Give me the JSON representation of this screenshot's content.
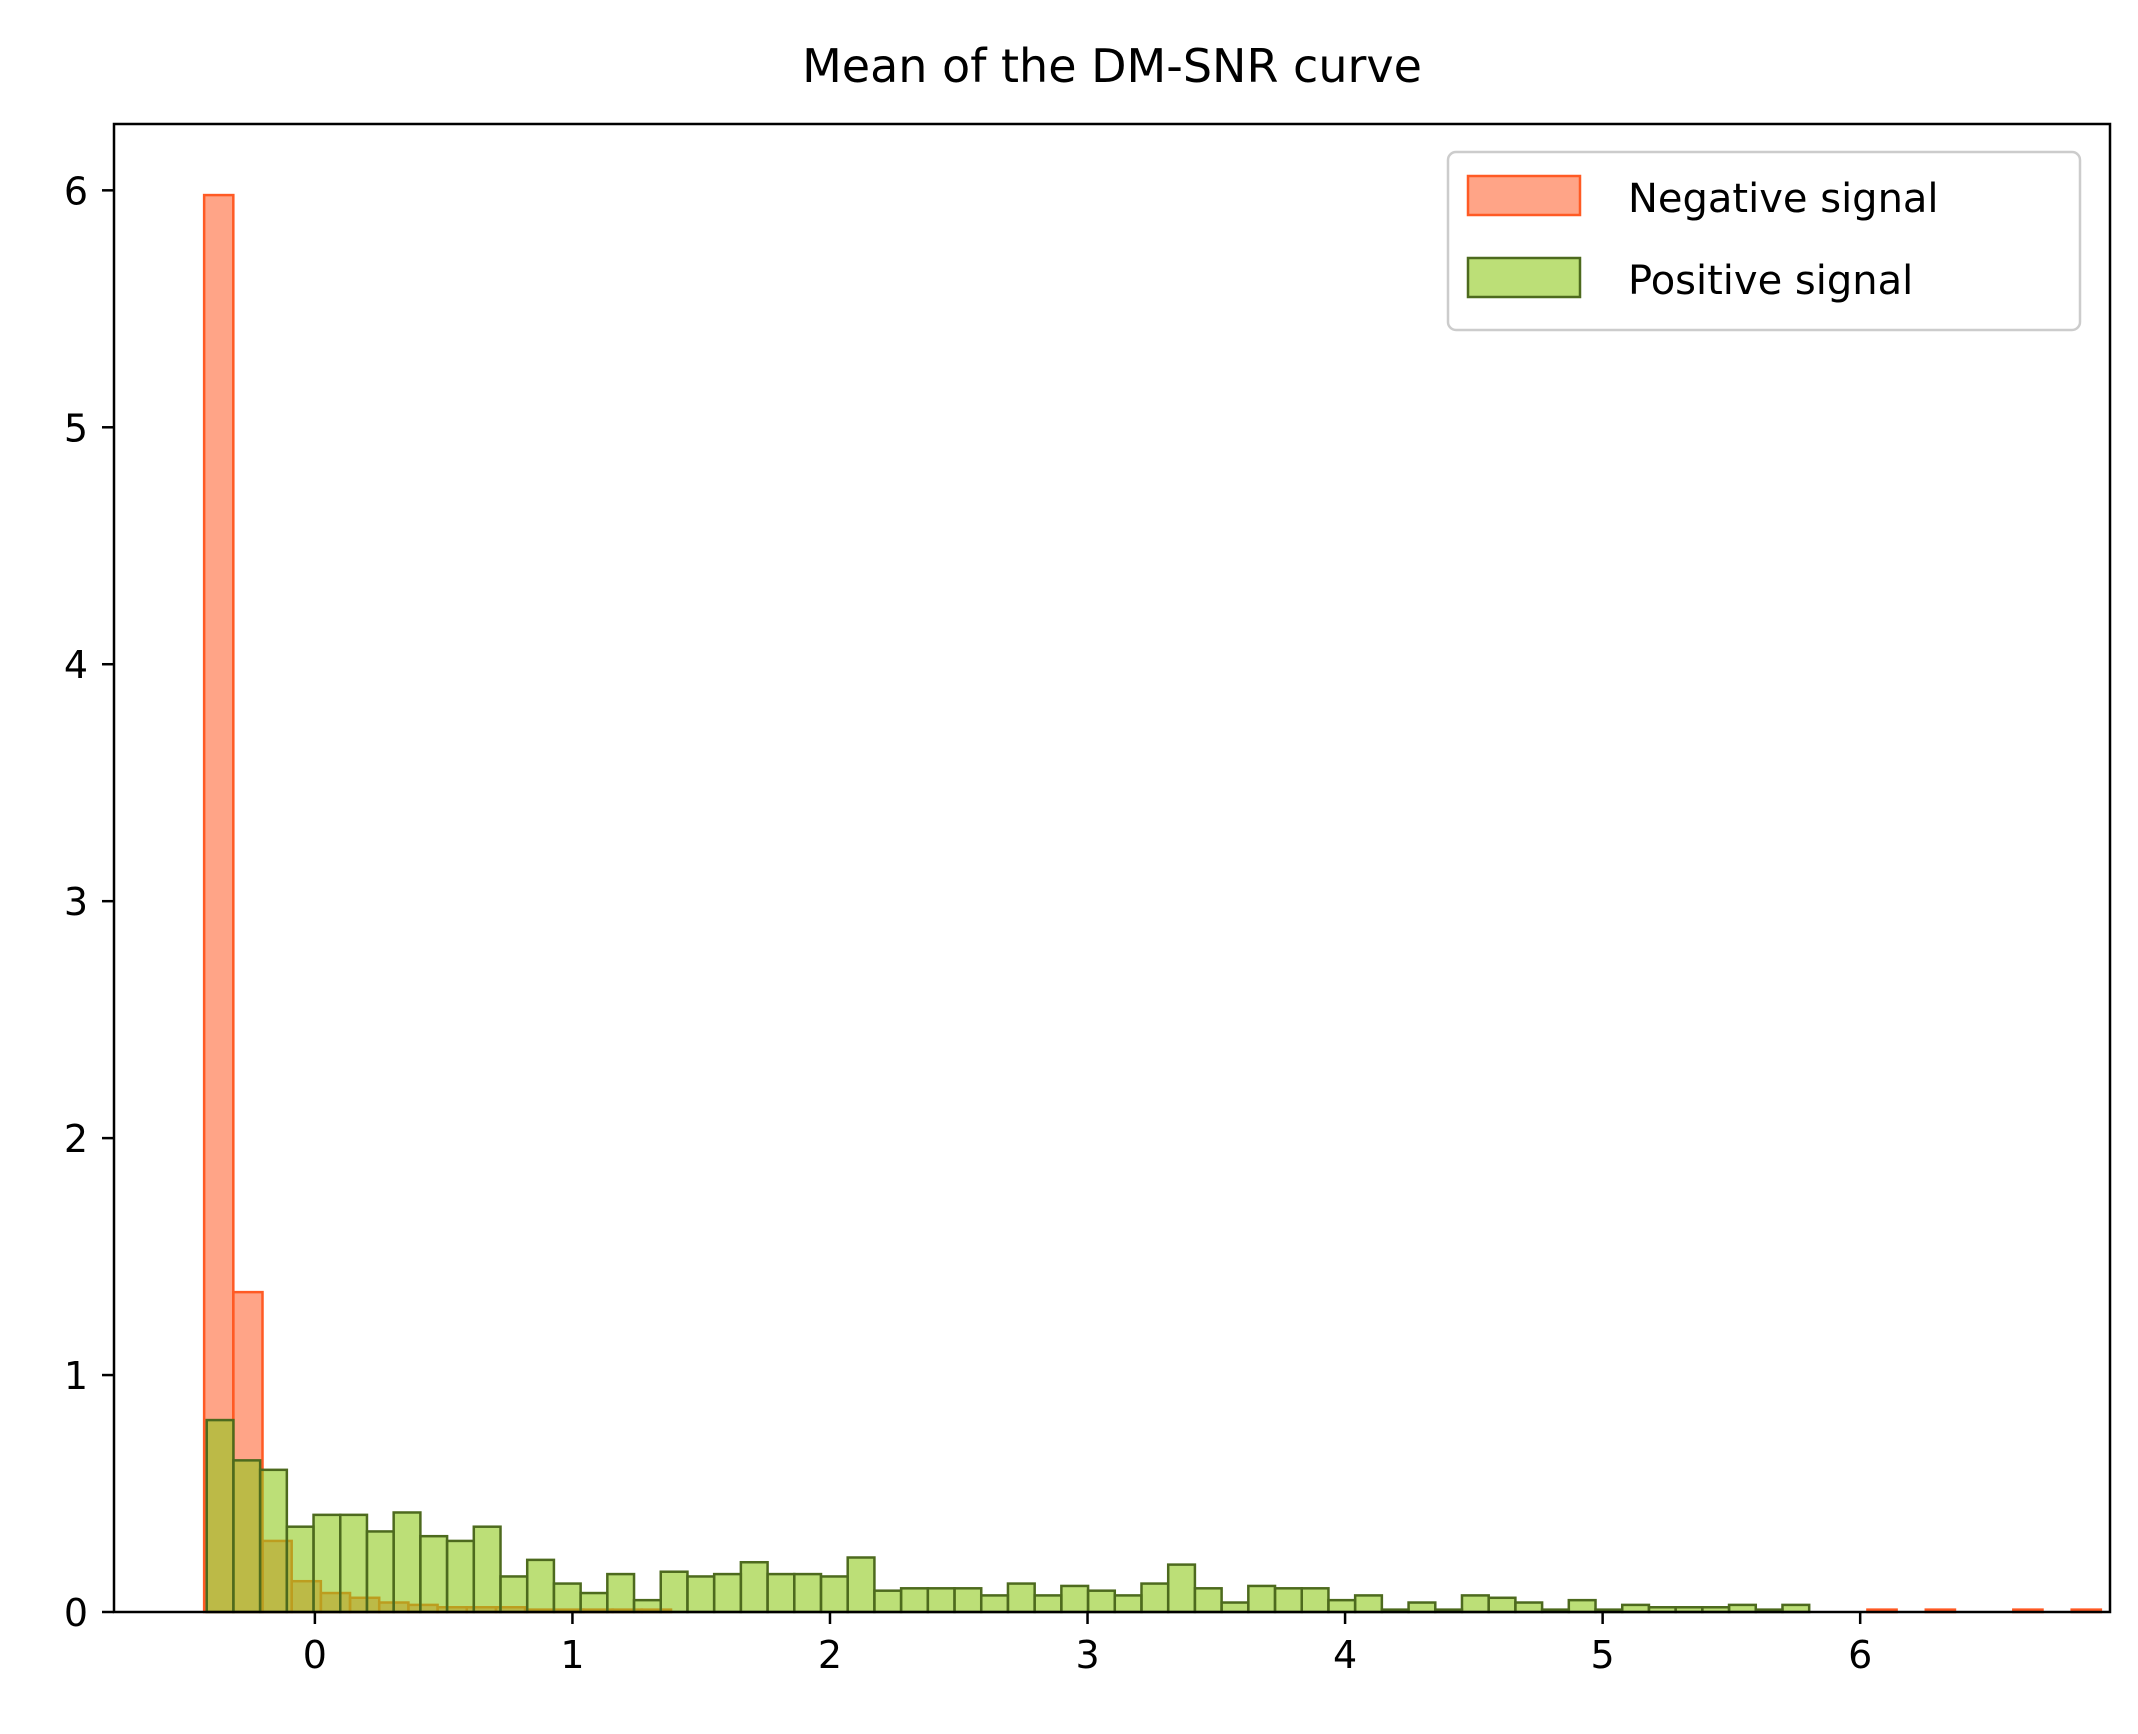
{
  "chart_data": {
    "type": "bar",
    "title": "Mean of the DM-SNR curve",
    "xlabel": "",
    "ylabel": "",
    "xlim": [
      -0.78,
      6.97
    ],
    "ylim": [
      0,
      6.28
    ],
    "xticks": [
      0,
      1,
      2,
      3,
      4,
      5,
      6
    ],
    "yticks": [
      0,
      1,
      2,
      3,
      4,
      5,
      6
    ],
    "grid": false,
    "legend_position": "top-right",
    "series": [
      {
        "name": "Negative signal",
        "fill": "#ff5a24",
        "fill_opacity": 0.55,
        "stroke": "#ff5a24",
        "x_start": -0.43,
        "bin_width": 0.1133,
        "values": [
          5.98,
          1.35,
          0.3,
          0.13,
          0.08,
          0.06,
          0.04,
          0.03,
          0.02,
          0.02,
          0.02,
          0.01,
          0.01,
          0.01,
          0.01,
          0.01,
          0,
          0,
          0,
          0,
          0,
          0,
          0,
          0,
          0,
          0,
          0,
          0,
          0,
          0,
          0,
          0,
          0,
          0,
          0,
          0,
          0,
          0,
          0,
          0,
          0,
          0,
          0,
          0,
          0,
          0,
          0,
          0,
          0,
          0,
          0,
          0,
          0,
          0,
          0,
          0,
          0,
          0.01,
          0,
          0.01,
          0,
          0,
          0.01,
          0,
          0.01
        ]
      },
      {
        "name": "Positive signal",
        "fill": "#8fc91c",
        "fill_opacity": 0.6,
        "stroke": "#4d6a1e",
        "x_start": -0.42,
        "bin_width": 0.1037,
        "values": [
          0.81,
          0.64,
          0.6,
          0.36,
          0.41,
          0.41,
          0.34,
          0.42,
          0.32,
          0.3,
          0.36,
          0.15,
          0.22,
          0.12,
          0.08,
          0.16,
          0.05,
          0.17,
          0.15,
          0.16,
          0.21,
          0.16,
          0.16,
          0.15,
          0.23,
          0.09,
          0.1,
          0.1,
          0.1,
          0.07,
          0.12,
          0.07,
          0.11,
          0.09,
          0.07,
          0.12,
          0.2,
          0.1,
          0.04,
          0.11,
          0.1,
          0.1,
          0.05,
          0.07,
          0.01,
          0.04,
          0.01,
          0.07,
          0.06,
          0.04,
          0.01,
          0.05,
          0.01,
          0.03,
          0.02,
          0.02,
          0.02,
          0.03,
          0.01,
          0.03
        ]
      }
    ]
  }
}
